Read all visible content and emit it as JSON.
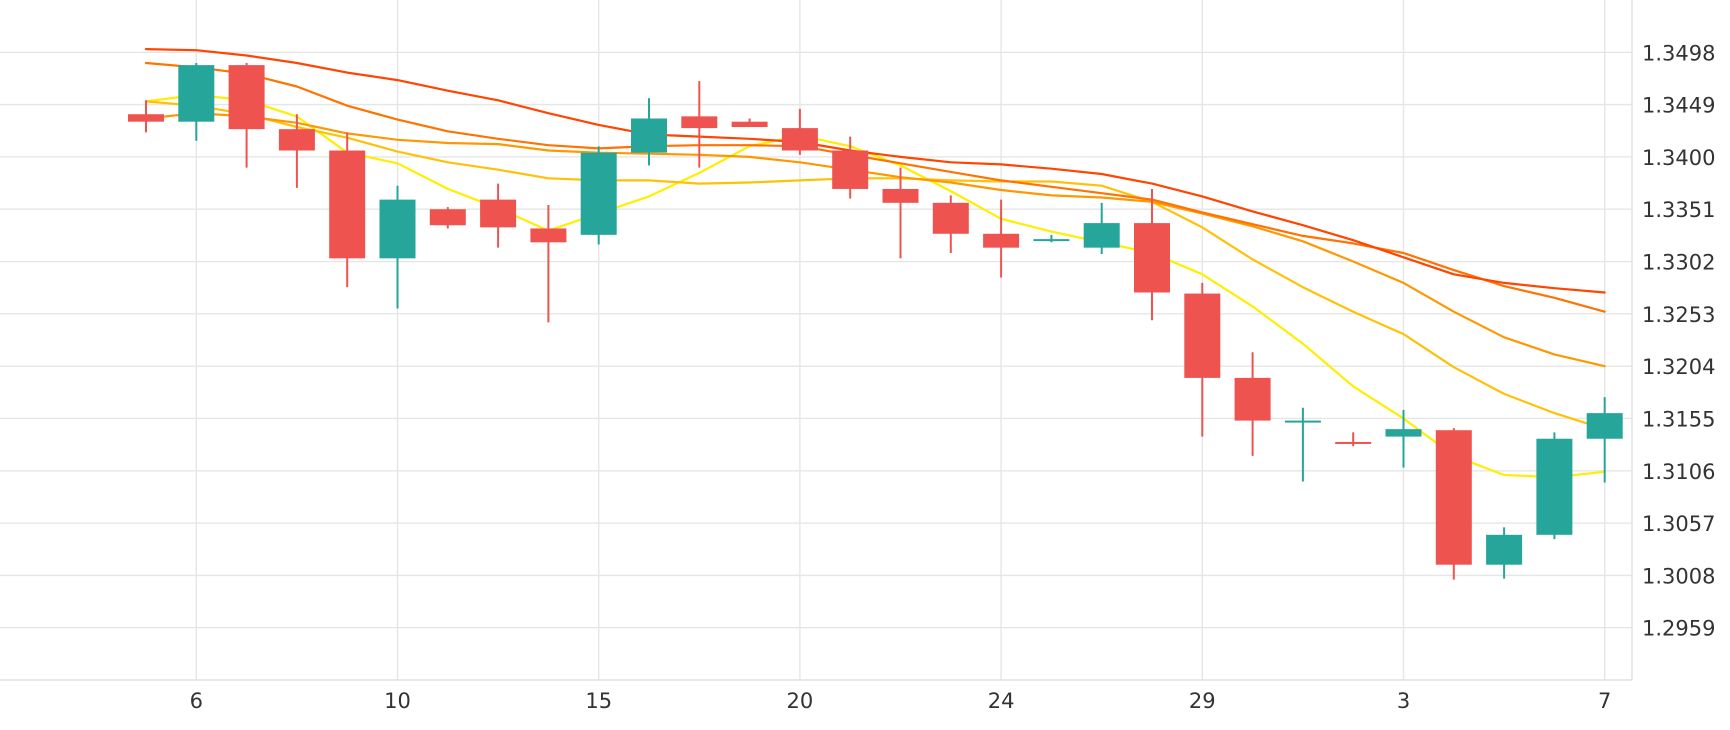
{
  "chart_data": {
    "type": "candlestick",
    "title": "",
    "xlabel": "",
    "ylabel": "",
    "ylim": [
      1.291,
      1.3547
    ],
    "y_ticks": [
      "1.3498",
      "1.3449",
      "1.3400",
      "1.3351",
      "1.3302",
      "1.3253",
      "1.3204",
      "1.3155",
      "1.3106",
      "1.3057",
      "1.3008",
      "1.2959"
    ],
    "x_ticks": [
      {
        "label": "6",
        "index": 1
      },
      {
        "label": "10",
        "index": 5
      },
      {
        "label": "15",
        "index": 9
      },
      {
        "label": "20",
        "index": 13
      },
      {
        "label": "24",
        "index": 17
      },
      {
        "label": "29",
        "index": 21
      },
      {
        "label": "3",
        "index": 25
      },
      {
        "label": "7",
        "index": 29
      }
    ],
    "colors": {
      "up": "#26a69a",
      "down": "#ef5350",
      "grid": "#e6e6e6",
      "text": "#333333"
    },
    "candles": [
      {
        "o": 1.344,
        "h": 1.3453,
        "l": 1.3423,
        "c": 1.3433
      },
      {
        "o": 1.3433,
        "h": 1.3488,
        "l": 1.3415,
        "c": 1.3486
      },
      {
        "o": 1.3486,
        "h": 1.3488,
        "l": 1.339,
        "c": 1.3426
      },
      {
        "o": 1.3426,
        "h": 1.344,
        "l": 1.3371,
        "c": 1.3406
      },
      {
        "o": 1.3406,
        "h": 1.3423,
        "l": 1.3278,
        "c": 1.3305
      },
      {
        "o": 1.3305,
        "h": 1.3373,
        "l": 1.3258,
        "c": 1.336
      },
      {
        "o": 1.3351,
        "h": 1.3353,
        "l": 1.3333,
        "c": 1.3336
      },
      {
        "o": 1.336,
        "h": 1.3375,
        "l": 1.3315,
        "c": 1.3334
      },
      {
        "o": 1.3333,
        "h": 1.3355,
        "l": 1.3245,
        "c": 1.332
      },
      {
        "o": 1.3327,
        "h": 1.341,
        "l": 1.3318,
        "c": 1.3404
      },
      {
        "o": 1.3404,
        "h": 1.3455,
        "l": 1.3392,
        "c": 1.3436
      },
      {
        "o": 1.3438,
        "h": 1.3471,
        "l": 1.339,
        "c": 1.3427
      },
      {
        "o": 1.3433,
        "h": 1.3436,
        "l": 1.3428,
        "c": 1.3428
      },
      {
        "o": 1.3427,
        "h": 1.3445,
        "l": 1.3402,
        "c": 1.3406
      },
      {
        "o": 1.3406,
        "h": 1.3419,
        "l": 1.3361,
        "c": 1.337
      },
      {
        "o": 1.337,
        "h": 1.339,
        "l": 1.3305,
        "c": 1.3357
      },
      {
        "o": 1.3357,
        "h": 1.3364,
        "l": 1.331,
        "c": 1.3328
      },
      {
        "o": 1.3328,
        "h": 1.336,
        "l": 1.3287,
        "c": 1.3315
      },
      {
        "o": 1.3323,
        "h": 1.3327,
        "l": 1.332,
        "c": 1.3323
      },
      {
        "o": 1.3315,
        "h": 1.3357,
        "l": 1.3309,
        "c": 1.3338
      },
      {
        "o": 1.3338,
        "h": 1.337,
        "l": 1.3247,
        "c": 1.3273
      },
      {
        "o": 1.3272,
        "h": 1.3282,
        "l": 1.3138,
        "c": 1.3193
      },
      {
        "o": 1.3193,
        "h": 1.3217,
        "l": 1.312,
        "c": 1.3153
      },
      {
        "o": 1.3152,
        "h": 1.3165,
        "l": 1.3096,
        "c": 1.3153
      },
      {
        "o": 1.3133,
        "h": 1.3142,
        "l": 1.3129,
        "c": 1.3132
      },
      {
        "o": 1.3138,
        "h": 1.3163,
        "l": 1.3109,
        "c": 1.3145
      },
      {
        "o": 1.3144,
        "h": 1.3146,
        "l": 1.3004,
        "c": 1.3018
      },
      {
        "o": 1.3018,
        "h": 1.3053,
        "l": 1.3005,
        "c": 1.3046
      },
      {
        "o": 1.3046,
        "h": 1.3142,
        "l": 1.3042,
        "c": 1.3136
      },
      {
        "o": 1.3136,
        "h": 1.3175,
        "l": 1.3095,
        "c": 1.316
      }
    ],
    "series": [
      {
        "color": "#ffee00",
        "values": [
          1.3452,
          1.3458,
          1.3453,
          1.3438,
          1.3404,
          1.3394,
          1.337,
          1.3352,
          1.3331,
          1.3347,
          1.3363,
          1.3385,
          1.341,
          1.342,
          1.341,
          1.3392,
          1.3368,
          1.3342,
          1.333,
          1.332,
          1.331,
          1.329,
          1.326,
          1.3225,
          1.3185,
          1.3155,
          1.312,
          1.3102,
          1.31,
          1.3105
        ]
      },
      {
        "color": "#ffc107",
        "values": [
          1.3452,
          1.3448,
          1.344,
          1.3428,
          1.3418,
          1.3405,
          1.3395,
          1.3388,
          1.338,
          1.3378,
          1.3378,
          1.3375,
          1.3376,
          1.3378,
          1.338,
          1.338,
          1.3378,
          1.3377,
          1.3377,
          1.3373,
          1.3358,
          1.3334,
          1.3304,
          1.3278,
          1.3255,
          1.3234,
          1.3203,
          1.3178,
          1.316,
          1.3145
        ]
      },
      {
        "color": "#ff9800",
        "values": [
          1.3436,
          1.3441,
          1.3438,
          1.3432,
          1.3422,
          1.3416,
          1.3413,
          1.3412,
          1.3406,
          1.3404,
          1.3403,
          1.3402,
          1.34,
          1.3395,
          1.3388,
          1.3381,
          1.3376,
          1.3369,
          1.3364,
          1.3362,
          1.3358,
          1.3347,
          1.3335,
          1.3321,
          1.3302,
          1.3282,
          1.3255,
          1.3231,
          1.3215,
          1.3204
        ]
      },
      {
        "color": "#ff7300",
        "values": [
          1.3488,
          1.3484,
          1.3478,
          1.3466,
          1.3448,
          1.3435,
          1.3424,
          1.3417,
          1.3411,
          1.3408,
          1.341,
          1.3411,
          1.3411,
          1.341,
          1.3402,
          1.3394,
          1.3386,
          1.3378,
          1.3372,
          1.3366,
          1.336,
          1.3348,
          1.3337,
          1.3326,
          1.3319,
          1.331,
          1.3294,
          1.3279,
          1.3268,
          1.3255
        ]
      },
      {
        "color": "#ff4500",
        "values": [
          1.3501,
          1.35,
          1.3495,
          1.3488,
          1.3479,
          1.3472,
          1.3462,
          1.3453,
          1.3441,
          1.343,
          1.3421,
          1.3419,
          1.3417,
          1.3414,
          1.3406,
          1.34,
          1.3395,
          1.3393,
          1.3389,
          1.3384,
          1.3375,
          1.3363,
          1.3349,
          1.3336,
          1.3322,
          1.3306,
          1.329,
          1.3282,
          1.3277,
          1.3273
        ]
      }
    ]
  }
}
